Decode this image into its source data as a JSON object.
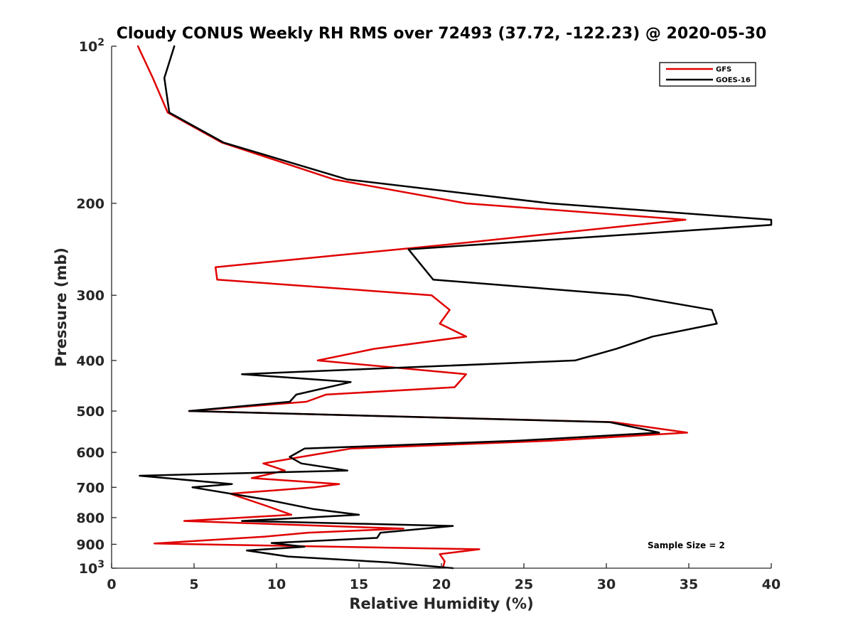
{
  "chart_data": {
    "type": "line",
    "title": "Cloudy CONUS Weekly RH RMS over 72493 (37.72, -122.23) @ 2020-05-30",
    "xlabel": "Relative Humidity (%)",
    "ylabel": "Pressure (mb)",
    "xlim": [
      0,
      40
    ],
    "ylim": [
      100,
      1000
    ],
    "y_scale": "log",
    "y_reversed": true,
    "grid": false,
    "legend_position": "top-right",
    "x_ticks": [
      "0",
      "5",
      "10",
      "15",
      "20",
      "25",
      "30",
      "35",
      "40"
    ],
    "y_ticks": [
      {
        "value": 100,
        "base": "10",
        "exp": "2"
      },
      {
        "value": 200,
        "label": "200"
      },
      {
        "value": 300,
        "label": "300"
      },
      {
        "value": 400,
        "label": "400"
      },
      {
        "value": 500,
        "label": "500"
      },
      {
        "value": 600,
        "label": "600"
      },
      {
        "value": 700,
        "label": "700"
      },
      {
        "value": 800,
        "label": "800"
      },
      {
        "value": 900,
        "label": "900"
      },
      {
        "value": 1000,
        "base": "10",
        "exp": "3"
      }
    ],
    "series": [
      {
        "name": "GFS",
        "color": "#e00000",
        "points": [
          [
            1.6,
            100
          ],
          [
            2.5,
            115
          ],
          [
            3.4,
            134
          ],
          [
            6.7,
            153
          ],
          [
            13.5,
            180
          ],
          [
            21.5,
            200
          ],
          [
            34.8,
            215
          ],
          [
            20.3,
            240
          ],
          [
            6.3,
            265
          ],
          [
            6.4,
            280
          ],
          [
            19.4,
            300
          ],
          [
            20.5,
            320
          ],
          [
            19.9,
            340
          ],
          [
            21.5,
            360
          ],
          [
            15.9,
            380
          ],
          [
            12.5,
            400
          ],
          [
            21.5,
            425
          ],
          [
            20.8,
            450
          ],
          [
            13.0,
            465
          ],
          [
            11.8,
            480
          ],
          [
            4.7,
            500
          ],
          [
            30.4,
            525
          ],
          [
            34.9,
            550
          ],
          [
            26.6,
            570
          ],
          [
            14.5,
            590
          ],
          [
            11.5,
            612
          ],
          [
            9.2,
            630
          ],
          [
            10.5,
            650
          ],
          [
            8.5,
            672
          ],
          [
            13.8,
            690
          ],
          [
            12.3,
            700
          ],
          [
            7.2,
            720
          ],
          [
            9.4,
            760
          ],
          [
            10.9,
            790
          ],
          [
            4.4,
            812
          ],
          [
            17.7,
            840
          ],
          [
            11.9,
            855
          ],
          [
            9.3,
            870
          ],
          [
            2.6,
            897
          ],
          [
            22.3,
            920
          ],
          [
            19.9,
            940
          ],
          [
            20.2,
            970
          ],
          [
            20.1,
            995
          ]
        ]
      },
      {
        "name": "GOES-16",
        "color": "#000000",
        "points": [
          [
            3.8,
            100
          ],
          [
            3.2,
            115
          ],
          [
            3.5,
            134
          ],
          [
            6.8,
            153
          ],
          [
            14.3,
            180
          ],
          [
            26.6,
            200
          ],
          [
            40.0,
            215
          ],
          [
            40.0,
            220
          ],
          [
            18.0,
            245
          ],
          [
            19.5,
            280
          ],
          [
            31.3,
            300
          ],
          [
            36.4,
            320
          ],
          [
            36.7,
            340
          ],
          [
            32.8,
            360
          ],
          [
            30.6,
            380
          ],
          [
            28.1,
            400
          ],
          [
            7.9,
            425
          ],
          [
            14.5,
            440
          ],
          [
            11.2,
            465
          ],
          [
            10.8,
            480
          ],
          [
            4.7,
            500
          ],
          [
            30.2,
            525
          ],
          [
            33.2,
            550
          ],
          [
            24.6,
            570
          ],
          [
            11.7,
            590
          ],
          [
            10.8,
            612
          ],
          [
            11.5,
            630
          ],
          [
            14.3,
            650
          ],
          [
            1.7,
            665
          ],
          [
            7.3,
            690
          ],
          [
            4.9,
            700
          ],
          [
            9.5,
            740
          ],
          [
            12.2,
            770
          ],
          [
            15.0,
            790
          ],
          [
            7.9,
            812
          ],
          [
            20.7,
            830
          ],
          [
            16.3,
            855
          ],
          [
            16.1,
            875
          ],
          [
            9.7,
            895
          ],
          [
            11.7,
            910
          ],
          [
            8.2,
            925
          ],
          [
            10.7,
            950
          ],
          [
            16.8,
            975
          ],
          [
            20.7,
            1000
          ]
        ]
      }
    ],
    "annotation": "Sample Size = 2"
  }
}
